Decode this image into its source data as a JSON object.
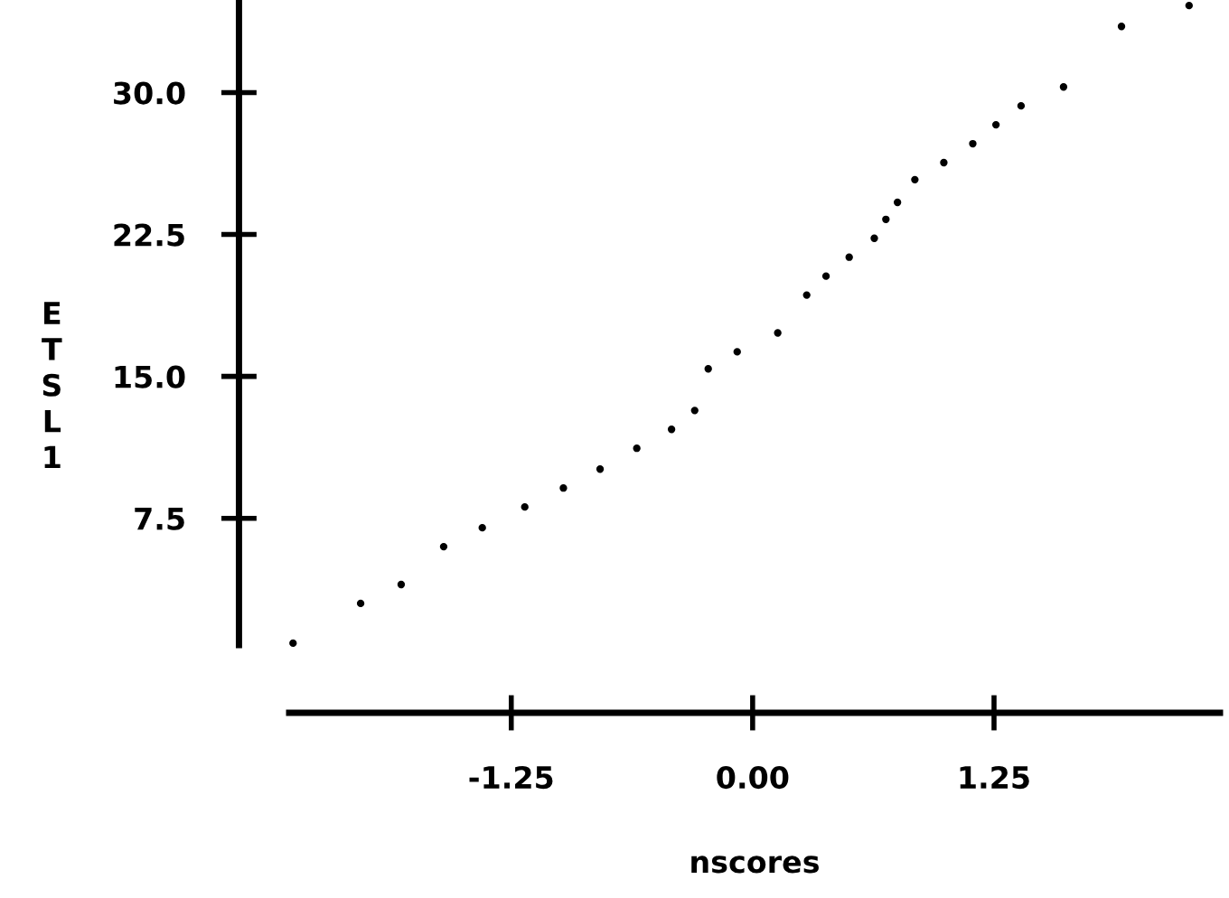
{
  "chart_data": {
    "type": "scatter",
    "xlabel": "nscores",
    "ylabel": "ETSL1",
    "marker": "circle",
    "grid": false,
    "x": [
      -2.38,
      -2.03,
      -1.82,
      -1.6,
      -1.4,
      -1.18,
      -0.98,
      -0.79,
      -0.6,
      -0.42,
      -0.3,
      -0.23,
      -0.08,
      0.13,
      0.28,
      0.38,
      0.5,
      0.63,
      0.69,
      0.75,
      0.84,
      0.99,
      1.14,
      1.26,
      1.39,
      1.61,
      1.91,
      2.26
    ],
    "values": [
      0.9,
      3.0,
      4.0,
      6.0,
      7.0,
      8.1,
      9.1,
      10.1,
      11.2,
      12.2,
      13.2,
      15.4,
      16.3,
      17.3,
      19.3,
      20.3,
      21.3,
      22.3,
      23.3,
      24.2,
      25.4,
      26.3,
      27.3,
      28.3,
      29.3,
      30.3,
      33.5,
      34.6
    ],
    "color": "#000000",
    "xlim": [
      -2.4,
      2.42
    ],
    "ylim": [
      0.8,
      34.8
    ],
    "xticks": [
      -1.25,
      {
        "value": 0,
        "label": "0.00"
      },
      1.25
    ],
    "yticks": [
      {
        "value": 7.5,
        "label": "7.5"
      },
      {
        "value": 15,
        "label": "15.0"
      },
      {
        "value": 22.5,
        "label": "22.5"
      },
      {
        "value": 30,
        "label": "30.0"
      }
    ]
  }
}
